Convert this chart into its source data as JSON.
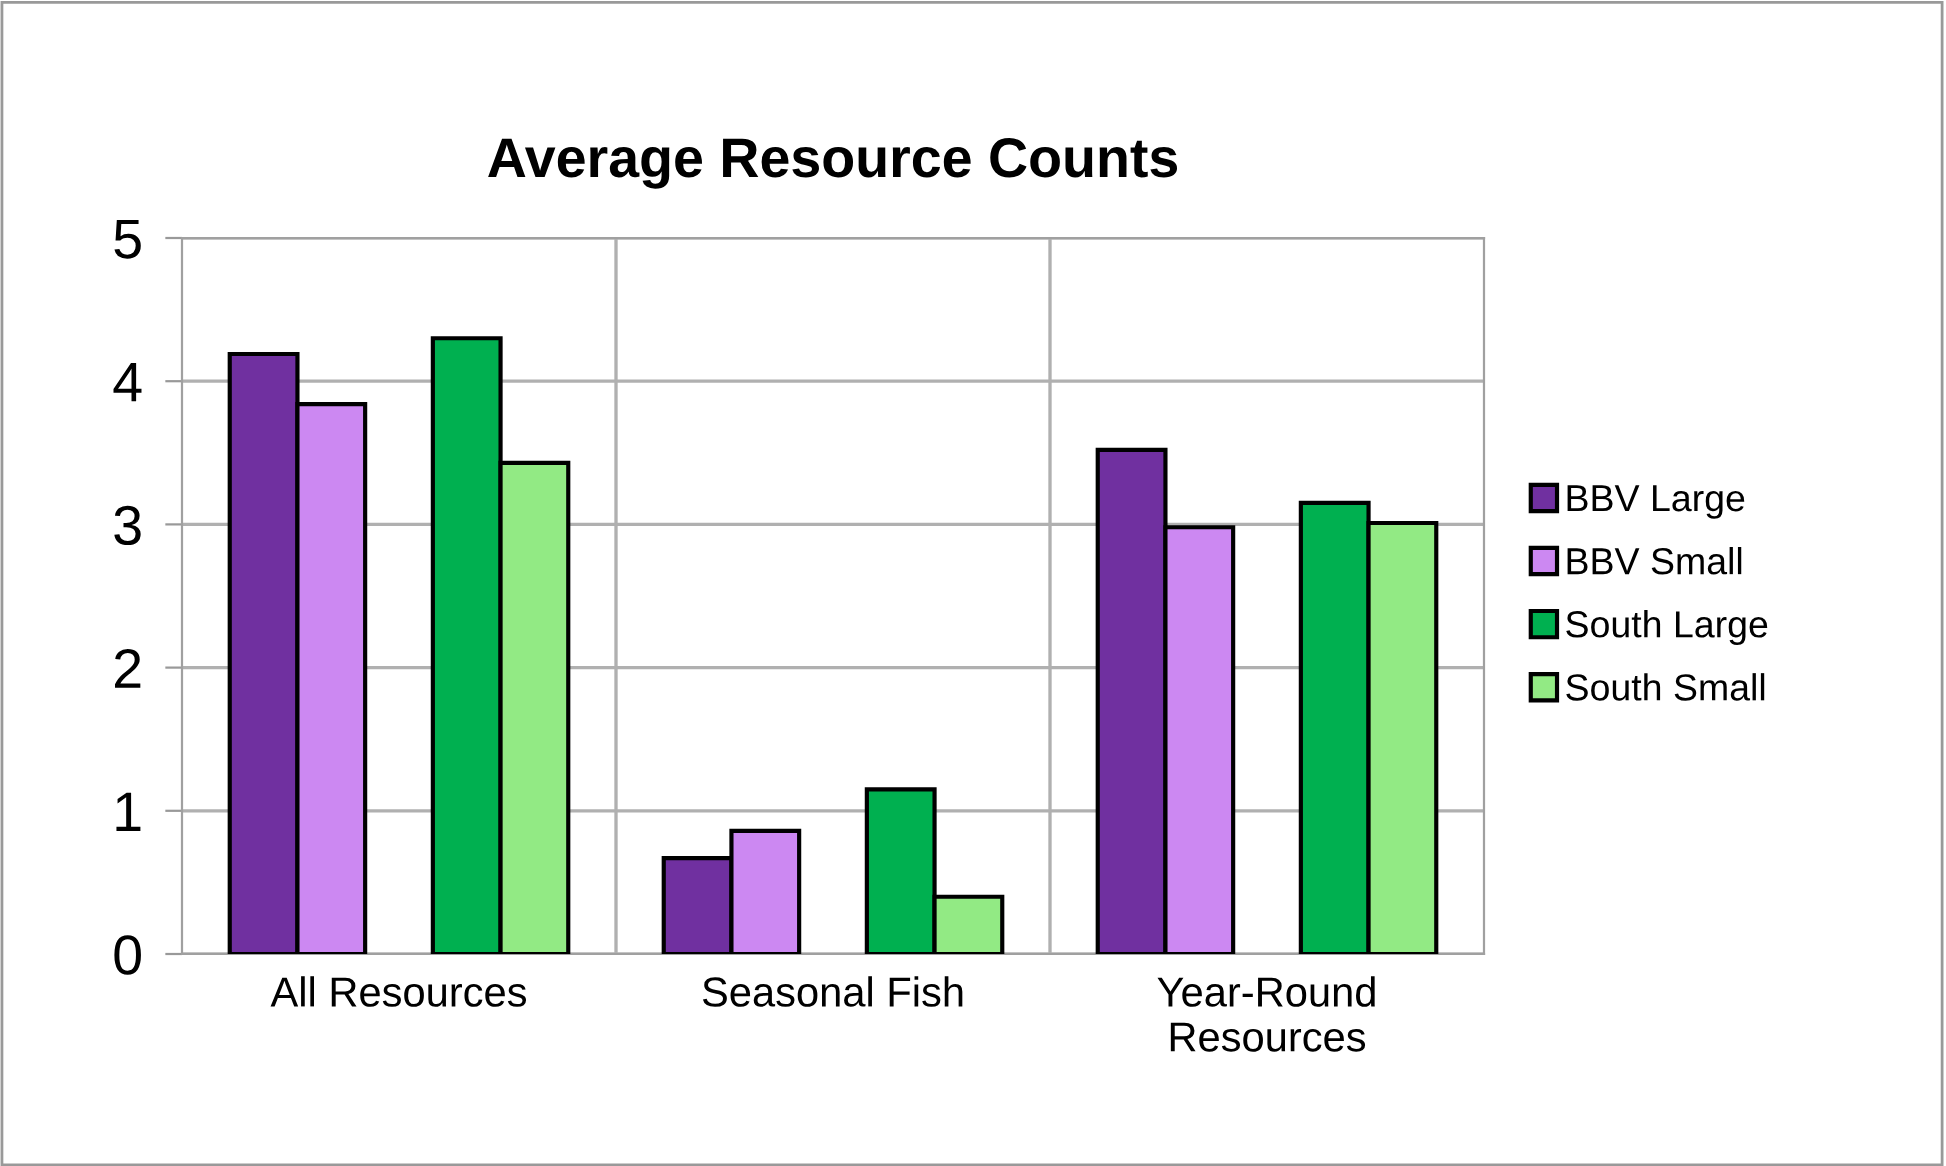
{
  "chart_data": {
    "type": "bar",
    "title": "Average Resource Counts",
    "categories": [
      "All Resources",
      "Seasonal Fish",
      "Year-Round\nResources"
    ],
    "series": [
      {
        "name": "BBV Large",
        "color": "#7030a0",
        "values": [
          4.19,
          0.67,
          3.52
        ]
      },
      {
        "name": "BBV Small",
        "color": "#cc88f2",
        "values": [
          3.84,
          0.86,
          2.98
        ]
      },
      {
        "name": "South Large",
        "color": "#00b050",
        "values": [
          4.3,
          1.15,
          3.15
        ]
      },
      {
        "name": "South Small",
        "color": "#92ea84",
        "values": [
          3.43,
          0.4,
          3.01
        ]
      }
    ],
    "ylim": [
      0,
      5
    ],
    "yticks": [
      0,
      1,
      2,
      3,
      4,
      5
    ],
    "grid": true,
    "legend": "right"
  }
}
